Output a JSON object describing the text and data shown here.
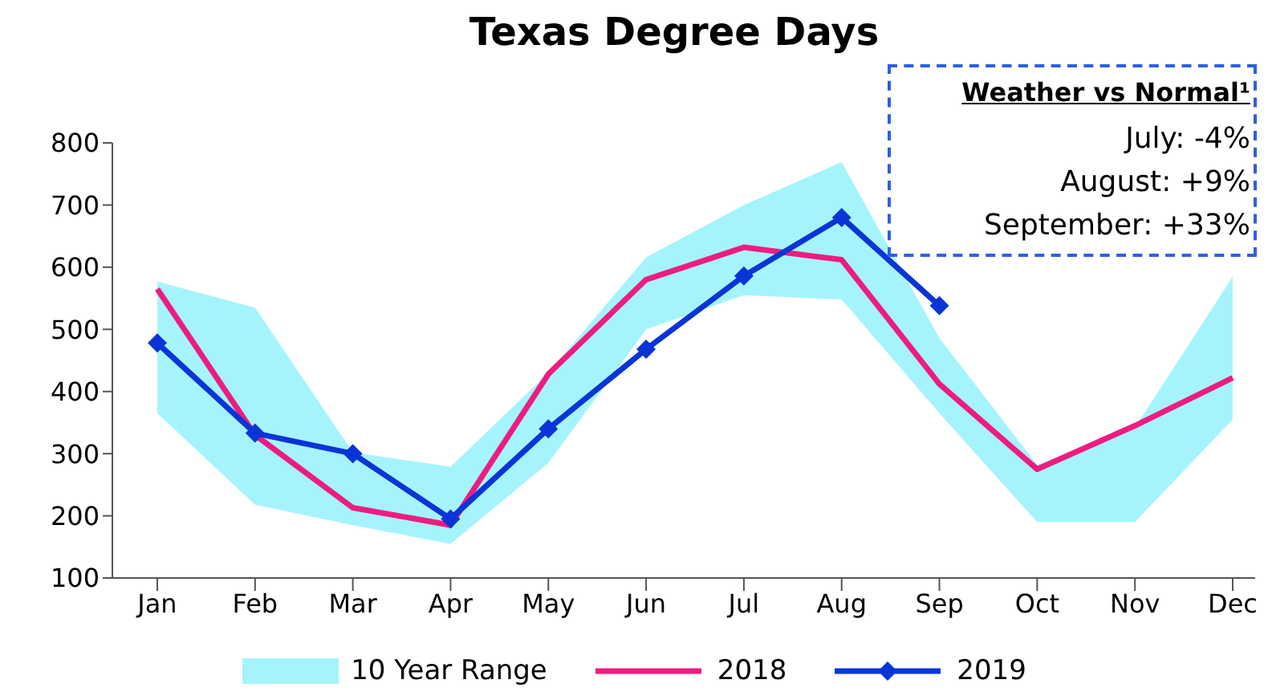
{
  "chart_data": {
    "type": "line",
    "title": "Texas Degree Days",
    "categories": [
      "Jan",
      "Feb",
      "Mar",
      "Apr",
      "May",
      "Jun",
      "Jul",
      "Aug",
      "Sep",
      "Oct",
      "Nov",
      "Dec"
    ],
    "series": [
      {
        "name": "10 Year Range",
        "type": "area",
        "color": "#a6f4fb",
        "values": [
          null,
          null,
          null,
          null,
          null,
          null,
          null,
          null,
          null,
          null,
          null,
          null
        ],
        "lower": [
          365,
          218,
          185,
          155,
          285,
          500,
          555,
          548,
          365,
          190,
          190,
          355
        ],
        "upper": [
          577,
          535,
          302,
          279,
          430,
          616,
          700,
          769,
          486,
          282,
          342,
          585
        ]
      },
      {
        "name": "2018",
        "color": "#ee1c80",
        "marker": "none",
        "values": [
          565,
          330,
          213,
          185,
          428,
          580,
          632,
          612,
          412,
          275,
          345,
          422
        ]
      },
      {
        "name": "2019",
        "color": "#0a35d6",
        "marker": "diamond",
        "values": [
          478,
          333,
          300,
          195,
          340,
          468,
          586,
          680,
          538,
          null,
          null,
          null
        ]
      }
    ],
    "ylim": [
      100,
      800
    ],
    "yticks": [
      100,
      200,
      300,
      400,
      500,
      600,
      700,
      800
    ],
    "grid": false,
    "legend": "bottom",
    "line_style": "solid",
    "annotations": [
      "Weather vs Normal¹",
      "July: -4%",
      "August: +9%",
      "September: +33%"
    ]
  }
}
